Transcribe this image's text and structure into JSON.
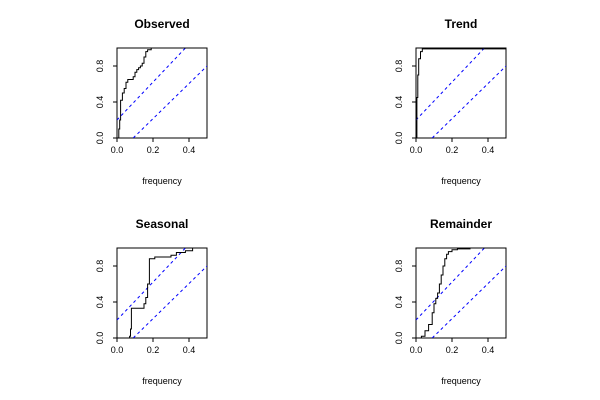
{
  "colors": {
    "data_line": "#000000",
    "band_line": "#0000ff",
    "axis": "#000000",
    "background": "#ffffff"
  },
  "chart_data": [
    {
      "type": "line",
      "title": "Observed",
      "xlabel": "frequency",
      "ylabel": "",
      "xlim": [
        0,
        0.5
      ],
      "ylim": [
        0,
        1
      ],
      "x_ticks": [
        "0.0",
        "0.2",
        "0.4"
      ],
      "y_ticks": [
        "0.0",
        "0.4",
        "0.8"
      ],
      "bands": [
        {
          "x": [
            0,
            0.38
          ],
          "y": [
            0.2,
            1.0
          ]
        },
        {
          "x": [
            0.09,
            0.5
          ],
          "y": [
            0,
            0.8
          ]
        }
      ],
      "series": [
        {
          "step": true,
          "x": [
            0,
            0.01,
            0.015,
            0.02,
            0.03,
            0.04,
            0.05,
            0.06,
            0.09,
            0.1,
            0.11,
            0.12,
            0.13,
            0.14,
            0.15,
            0.16,
            0.17,
            0.19,
            0.5
          ],
          "y": [
            0,
            0.1,
            0.2,
            0.42,
            0.5,
            0.55,
            0.62,
            0.65,
            0.68,
            0.73,
            0.76,
            0.78,
            0.8,
            0.83,
            0.9,
            0.96,
            0.98,
            1.0,
            1.0
          ]
        }
      ]
    },
    {
      "type": "line",
      "title": "Trend",
      "xlabel": "frequency",
      "ylabel": "",
      "xlim": [
        0,
        0.5
      ],
      "ylim": [
        0,
        1
      ],
      "x_ticks": [
        "0.0",
        "0.2",
        "0.4"
      ],
      "y_ticks": [
        "0.0",
        "0.4",
        "0.8"
      ],
      "bands": [
        {
          "x": [
            0,
            0.38
          ],
          "y": [
            0.2,
            1.0
          ]
        },
        {
          "x": [
            0.09,
            0.5
          ],
          "y": [
            0,
            0.8
          ]
        }
      ],
      "series": [
        {
          "step": true,
          "x": [
            0,
            0.005,
            0.01,
            0.015,
            0.025,
            0.035,
            0.5
          ],
          "y": [
            0,
            0.45,
            0.7,
            0.88,
            0.96,
            0.99,
            1.0
          ]
        }
      ]
    },
    {
      "type": "line",
      "title": "Seasonal",
      "xlabel": "frequency",
      "ylabel": "",
      "xlim": [
        0,
        0.5
      ],
      "ylim": [
        0,
        1
      ],
      "x_ticks": [
        "0.0",
        "0.2",
        "0.4"
      ],
      "y_ticks": [
        "0.0",
        "0.4",
        "0.8"
      ],
      "bands": [
        {
          "x": [
            0,
            0.38
          ],
          "y": [
            0.2,
            1.0
          ]
        },
        {
          "x": [
            0.09,
            0.5
          ],
          "y": [
            0,
            0.8
          ]
        }
      ],
      "series": [
        {
          "step": true,
          "x": [
            0,
            0.07,
            0.075,
            0.08,
            0.15,
            0.16,
            0.17,
            0.18,
            0.21,
            0.3,
            0.33,
            0.38,
            0.42,
            0.5
          ],
          "y": [
            0,
            0.02,
            0.1,
            0.33,
            0.38,
            0.45,
            0.6,
            0.88,
            0.9,
            0.92,
            0.95,
            0.97,
            1.0,
            1.0
          ]
        }
      ]
    },
    {
      "type": "line",
      "title": "Remainder",
      "xlabel": "frequency",
      "ylabel": "",
      "xlim": [
        0,
        0.5
      ],
      "ylim": [
        0,
        1
      ],
      "x_ticks": [
        "0.0",
        "0.2",
        "0.4"
      ],
      "y_ticks": [
        "0.0",
        "0.4",
        "0.8"
      ],
      "bands": [
        {
          "x": [
            0,
            0.38
          ],
          "y": [
            0.2,
            1.0
          ]
        },
        {
          "x": [
            0.09,
            0.5
          ],
          "y": [
            0,
            0.8
          ]
        }
      ],
      "series": [
        {
          "step": true,
          "x": [
            0,
            0.03,
            0.05,
            0.07,
            0.09,
            0.1,
            0.11,
            0.12,
            0.13,
            0.14,
            0.15,
            0.16,
            0.17,
            0.18,
            0.2,
            0.23,
            0.3,
            0.5
          ],
          "y": [
            0,
            0.02,
            0.08,
            0.15,
            0.28,
            0.38,
            0.44,
            0.5,
            0.6,
            0.7,
            0.8,
            0.88,
            0.93,
            0.96,
            0.98,
            0.99,
            1.0,
            1.0
          ]
        }
      ]
    }
  ]
}
